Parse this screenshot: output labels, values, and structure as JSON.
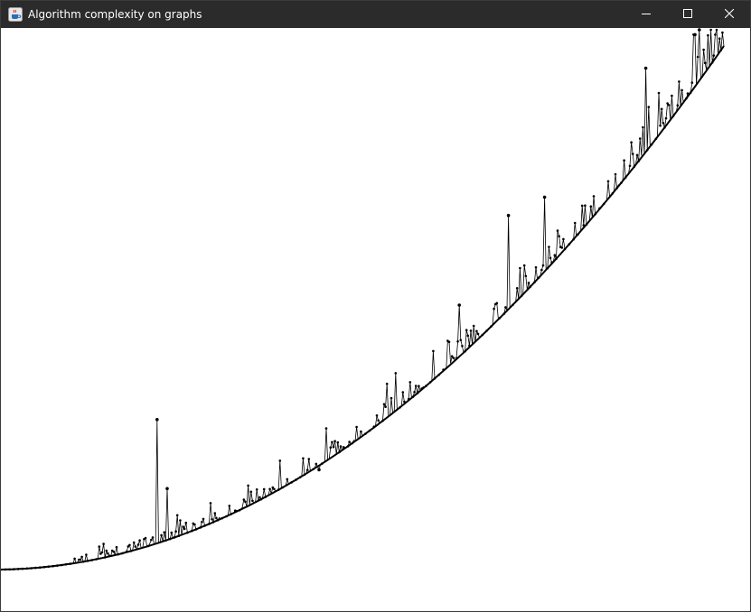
{
  "window": {
    "title": "Algorithm complexity on graphs",
    "icon": "java-cup-icon",
    "controls": [
      "minimize-icon",
      "maximize-icon",
      "close-icon"
    ],
    "titlebar_color": "#2b2b2b"
  },
  "chart_data": {
    "type": "line",
    "title": "",
    "xlabel": "",
    "ylabel": "",
    "axes_visible": false,
    "grid": false,
    "line_color": "#000000",
    "marker": "dot",
    "trend": "quadratic",
    "xlim": [
      0,
      1000
    ],
    "ylim": [
      0,
      1000
    ],
    "spikes": [
      {
        "x": 216,
        "y": 278
      },
      {
        "x": 230,
        "y": 150
      },
      {
        "x": 359,
        "y": 196
      },
      {
        "x": 397,
        "y": 168
      },
      {
        "x": 440,
        "y": 185
      },
      {
        "x": 467,
        "y": 226
      },
      {
        "x": 513,
        "y": 265
      },
      {
        "x": 567,
        "y": 324
      },
      {
        "x": 591,
        "y": 358
      },
      {
        "x": 634,
        "y": 490
      },
      {
        "x": 655,
        "y": 547
      },
      {
        "x": 702,
        "y": 656
      },
      {
        "x": 727,
        "y": 650
      },
      {
        "x": 752,
        "y": 690
      },
      {
        "x": 787,
        "y": 742
      },
      {
        "x": 861,
        "y": 820
      },
      {
        "x": 892,
        "y": 929
      },
      {
        "x": 915,
        "y": 950
      },
      {
        "x": 935,
        "y": 948
      },
      {
        "x": 960,
        "y": 991
      },
      {
        "x": 966,
        "y": 1000
      }
    ]
  }
}
